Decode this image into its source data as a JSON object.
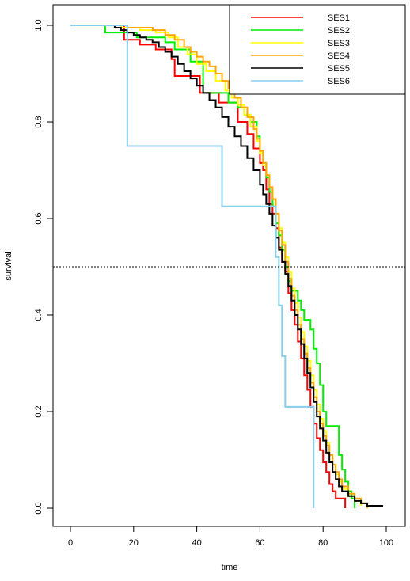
{
  "chart_data": {
    "type": "line",
    "step": true,
    "title": "",
    "xlabel": "time",
    "ylabel": "survival",
    "xlim": [
      0,
      100
    ],
    "ylim": [
      0,
      1
    ],
    "xticks": [
      0,
      20,
      40,
      60,
      80,
      100
    ],
    "yticks": [
      0.0,
      0.2,
      0.4,
      0.6,
      0.8,
      1.0
    ],
    "xtick_labels": [
      "0",
      "20",
      "40",
      "60",
      "80",
      "100"
    ],
    "ytick_labels": [
      "0.0",
      "0.2",
      "0.4",
      "0.6",
      "0.8",
      "1.0"
    ],
    "reference_line": {
      "y": 0.5,
      "style": "dotted"
    },
    "grid": false,
    "legend_position": "top-right",
    "series": [
      {
        "name": "SES1",
        "color": "#ff0000",
        "points": [
          [
            10,
            1.0
          ],
          [
            17,
            0.97
          ],
          [
            22,
            0.96
          ],
          [
            27,
            0.95
          ],
          [
            32,
            0.93
          ],
          [
            33,
            0.895
          ],
          [
            38,
            0.895
          ],
          [
            41,
            0.86
          ],
          [
            44,
            0.86
          ],
          [
            47,
            0.84
          ],
          [
            50,
            0.84
          ],
          [
            53,
            0.8
          ],
          [
            56,
            0.775
          ],
          [
            58,
            0.745
          ],
          [
            60,
            0.715
          ],
          [
            61,
            0.7
          ],
          [
            62,
            0.66
          ],
          [
            63,
            0.63
          ],
          [
            64,
            0.61
          ],
          [
            65,
            0.58
          ],
          [
            66,
            0.54
          ],
          [
            67,
            0.51
          ],
          [
            68,
            0.49
          ],
          [
            69,
            0.445
          ],
          [
            70,
            0.41
          ],
          [
            71,
            0.38
          ],
          [
            72,
            0.345
          ],
          [
            73,
            0.31
          ],
          [
            74,
            0.275
          ],
          [
            75,
            0.245
          ],
          [
            76,
            0.21
          ],
          [
            77,
            0.175
          ],
          [
            78,
            0.145
          ],
          [
            79,
            0.12
          ],
          [
            80,
            0.095
          ],
          [
            81,
            0.075
          ],
          [
            82,
            0.05
          ],
          [
            83,
            0.035
          ],
          [
            84,
            0.02
          ],
          [
            86,
            0.02
          ],
          [
            87,
            0.0
          ]
        ]
      },
      {
        "name": "SES2",
        "color": "#00ee00",
        "points": [
          [
            10,
            1.0
          ],
          [
            11,
            0.985
          ],
          [
            16,
            0.985
          ],
          [
            21,
            0.975
          ],
          [
            30,
            0.965
          ],
          [
            33,
            0.95
          ],
          [
            38,
            0.925
          ],
          [
            42,
            0.86
          ],
          [
            48,
            0.86
          ],
          [
            50,
            0.84
          ],
          [
            53,
            0.83
          ],
          [
            55,
            0.815
          ],
          [
            57,
            0.8
          ],
          [
            59,
            0.77
          ],
          [
            60,
            0.74
          ],
          [
            61,
            0.715
          ],
          [
            62,
            0.685
          ],
          [
            63,
            0.655
          ],
          [
            64,
            0.625
          ],
          [
            65,
            0.59
          ],
          [
            66,
            0.565
          ],
          [
            67,
            0.535
          ],
          [
            68,
            0.5
          ],
          [
            69,
            0.47
          ],
          [
            70,
            0.45
          ],
          [
            72,
            0.43
          ],
          [
            73,
            0.41
          ],
          [
            74,
            0.39
          ],
          [
            76,
            0.37
          ],
          [
            77,
            0.33
          ],
          [
            78,
            0.3
          ],
          [
            79,
            0.255
          ],
          [
            80,
            0.2
          ],
          [
            81,
            0.17
          ],
          [
            84,
            0.17
          ],
          [
            85,
            0.11
          ],
          [
            86,
            0.08
          ],
          [
            87,
            0.055
          ],
          [
            88,
            0.035
          ],
          [
            89,
            0.02
          ],
          [
            90,
            0.0
          ]
        ]
      },
      {
        "name": "SES3",
        "color": "#ffff00",
        "points": [
          [
            10,
            1.0
          ],
          [
            16,
            0.995
          ],
          [
            22,
            0.99
          ],
          [
            27,
            0.985
          ],
          [
            31,
            0.975
          ],
          [
            34,
            0.955
          ],
          [
            37,
            0.94
          ],
          [
            40,
            0.92
          ],
          [
            43,
            0.905
          ],
          [
            46,
            0.885
          ],
          [
            49,
            0.865
          ],
          [
            51,
            0.85
          ],
          [
            53,
            0.835
          ],
          [
            55,
            0.815
          ],
          [
            57,
            0.79
          ],
          [
            59,
            0.76
          ],
          [
            60,
            0.735
          ],
          [
            61,
            0.71
          ],
          [
            62,
            0.69
          ],
          [
            63,
            0.665
          ],
          [
            64,
            0.64
          ],
          [
            65,
            0.61
          ],
          [
            66,
            0.58
          ],
          [
            67,
            0.55
          ],
          [
            68,
            0.52
          ],
          [
            69,
            0.49
          ],
          [
            70,
            0.455
          ],
          [
            71,
            0.425
          ],
          [
            72,
            0.395
          ],
          [
            73,
            0.365
          ],
          [
            74,
            0.335
          ],
          [
            75,
            0.305
          ],
          [
            76,
            0.275
          ],
          [
            77,
            0.245
          ],
          [
            78,
            0.215
          ],
          [
            79,
            0.185
          ],
          [
            80,
            0.16
          ],
          [
            81,
            0.135
          ],
          [
            82,
            0.11
          ],
          [
            83,
            0.09
          ],
          [
            84,
            0.07
          ],
          [
            85,
            0.055
          ],
          [
            86,
            0.04
          ],
          [
            88,
            0.025
          ],
          [
            90,
            0.015
          ],
          [
            92,
            0.005
          ]
        ]
      },
      {
        "name": "SES4",
        "color": "#ffa500",
        "points": [
          [
            10,
            1.0
          ],
          [
            18,
            0.995
          ],
          [
            26,
            0.99
          ],
          [
            30,
            0.98
          ],
          [
            33,
            0.97
          ],
          [
            36,
            0.955
          ],
          [
            38,
            0.945
          ],
          [
            40,
            0.935
          ],
          [
            42,
            0.925
          ],
          [
            44,
            0.915
          ],
          [
            46,
            0.9
          ],
          [
            48,
            0.885
          ],
          [
            50,
            0.87
          ],
          [
            52,
            0.85
          ],
          [
            54,
            0.83
          ],
          [
            56,
            0.81
          ],
          [
            58,
            0.785
          ],
          [
            59,
            0.765
          ],
          [
            60,
            0.74
          ],
          [
            61,
            0.715
          ],
          [
            62,
            0.69
          ],
          [
            63,
            0.665
          ],
          [
            64,
            0.64
          ],
          [
            65,
            0.61
          ],
          [
            66,
            0.575
          ],
          [
            67,
            0.545
          ],
          [
            68,
            0.51
          ],
          [
            69,
            0.475
          ],
          [
            70,
            0.44
          ],
          [
            71,
            0.41
          ],
          [
            72,
            0.38
          ],
          [
            73,
            0.35
          ],
          [
            74,
            0.32
          ],
          [
            75,
            0.29
          ],
          [
            76,
            0.26
          ],
          [
            77,
            0.23
          ],
          [
            78,
            0.2
          ],
          [
            79,
            0.175
          ],
          [
            80,
            0.15
          ],
          [
            81,
            0.13
          ],
          [
            82,
            0.11
          ],
          [
            83,
            0.09
          ],
          [
            84,
            0.075
          ],
          [
            85,
            0.06
          ],
          [
            86,
            0.045
          ],
          [
            88,
            0.03
          ],
          [
            90,
            0.02
          ],
          [
            92,
            0.01
          ],
          [
            94,
            0.0
          ]
        ]
      },
      {
        "name": "SES5",
        "color": "#000000",
        "points": [
          [
            12,
            1.0
          ],
          [
            14,
            0.995
          ],
          [
            16,
            0.99
          ],
          [
            18,
            0.985
          ],
          [
            20,
            0.98
          ],
          [
            22,
            0.975
          ],
          [
            24,
            0.97
          ],
          [
            26,
            0.965
          ],
          [
            28,
            0.955
          ],
          [
            30,
            0.945
          ],
          [
            32,
            0.935
          ],
          [
            34,
            0.92
          ],
          [
            36,
            0.905
          ],
          [
            38,
            0.89
          ],
          [
            40,
            0.875
          ],
          [
            42,
            0.86
          ],
          [
            44,
            0.845
          ],
          [
            46,
            0.83
          ],
          [
            48,
            0.81
          ],
          [
            50,
            0.79
          ],
          [
            52,
            0.77
          ],
          [
            54,
            0.75
          ],
          [
            56,
            0.725
          ],
          [
            58,
            0.7
          ],
          [
            60,
            0.67
          ],
          [
            61,
            0.65
          ],
          [
            62,
            0.63
          ],
          [
            63,
            0.61
          ],
          [
            64,
            0.585
          ],
          [
            65,
            0.56
          ],
          [
            66,
            0.535
          ],
          [
            67,
            0.51
          ],
          [
            68,
            0.485
          ],
          [
            69,
            0.46
          ],
          [
            70,
            0.43
          ],
          [
            71,
            0.4
          ],
          [
            72,
            0.37
          ],
          [
            73,
            0.34
          ],
          [
            74,
            0.31
          ],
          [
            75,
            0.28
          ],
          [
            76,
            0.25
          ],
          [
            77,
            0.22
          ],
          [
            78,
            0.19
          ],
          [
            79,
            0.165
          ],
          [
            80,
            0.14
          ],
          [
            81,
            0.115
          ],
          [
            82,
            0.095
          ],
          [
            83,
            0.075
          ],
          [
            84,
            0.06
          ],
          [
            85,
            0.045
          ],
          [
            86,
            0.035
          ],
          [
            88,
            0.025
          ],
          [
            90,
            0.015
          ],
          [
            92,
            0.01
          ],
          [
            94,
            0.005
          ],
          [
            99,
            0.005
          ]
        ]
      },
      {
        "name": "SES6",
        "color": "#87ceeb",
        "points": [
          [
            0,
            1.0
          ],
          [
            18,
            1.0
          ],
          [
            18,
            0.75
          ],
          [
            48,
            0.75
          ],
          [
            48,
            0.625
          ],
          [
            65,
            0.625
          ],
          [
            65,
            0.52
          ],
          [
            66,
            0.42
          ],
          [
            67,
            0.315
          ],
          [
            68,
            0.21
          ],
          [
            77,
            0.21
          ],
          [
            77,
            0.0
          ]
        ]
      }
    ]
  }
}
